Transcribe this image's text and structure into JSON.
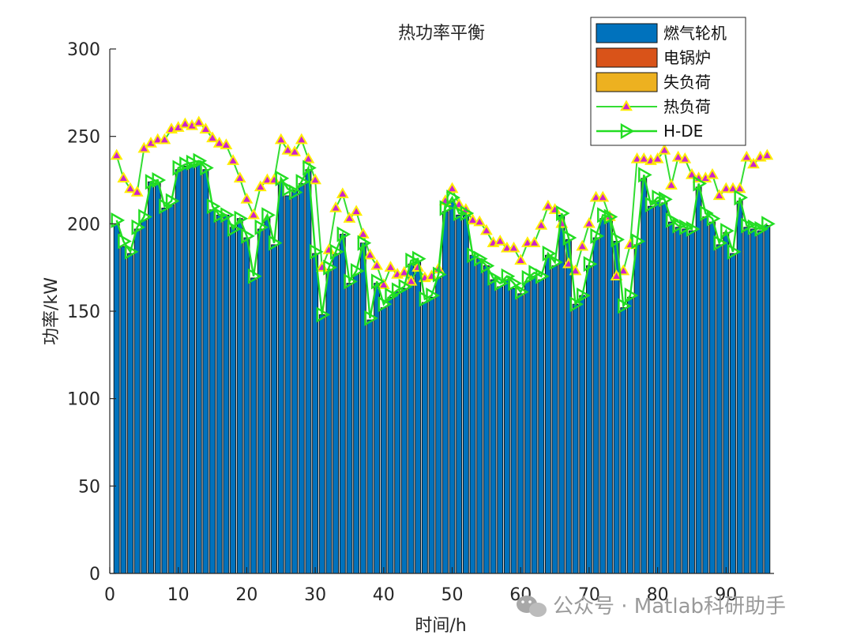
{
  "chart_data": {
    "type": "bar",
    "title": "热功率平衡",
    "xlabel": "时间/h",
    "ylabel": "功率/kW",
    "xlim": [
      0,
      97
    ],
    "ylim": [
      0,
      300
    ],
    "x_ticks": [
      0,
      10,
      20,
      30,
      40,
      50,
      60,
      70,
      80,
      90
    ],
    "y_ticks": [
      0,
      50,
      100,
      150,
      200,
      250,
      300
    ],
    "stacked": true,
    "legend_position": "top-right",
    "grid": false,
    "x": [
      1,
      2,
      3,
      4,
      5,
      6,
      7,
      8,
      9,
      10,
      11,
      12,
      13,
      14,
      15,
      16,
      17,
      18,
      19,
      20,
      21,
      22,
      23,
      24,
      25,
      26,
      27,
      28,
      29,
      30,
      31,
      32,
      33,
      34,
      35,
      36,
      37,
      38,
      39,
      40,
      41,
      42,
      43,
      44,
      45,
      46,
      47,
      48,
      49,
      50,
      51,
      52,
      53,
      54,
      55,
      56,
      57,
      58,
      59,
      60,
      61,
      62,
      63,
      64,
      65,
      66,
      67,
      68,
      69,
      70,
      71,
      72,
      73,
      74,
      75,
      76,
      77,
      78,
      79,
      80,
      81,
      82,
      83,
      84,
      85,
      86,
      87,
      88,
      89,
      90,
      91,
      92,
      93,
      94,
      95,
      96
    ],
    "series": [
      {
        "name": "燃气轮机",
        "kind": "bar",
        "color": "#0072BD",
        "values": [
          200,
          187,
          183,
          197,
          202,
          224,
          223,
          209,
          211,
          231,
          233,
          234,
          234,
          231,
          208,
          205,
          205,
          198,
          203,
          192,
          169,
          197,
          203,
          188,
          224,
          216,
          219,
          223,
          231,
          183,
          148,
          174,
          183,
          194,
          166,
          171,
          189,
          145,
          166,
          152,
          158,
          161,
          163,
          177,
          178,
          155,
          158,
          169,
          207,
          213,
          205,
          205,
          182,
          180,
          176,
          168,
          164,
          168,
          163,
          160,
          167,
          170,
          168,
          182,
          176,
          205,
          191,
          154,
          159,
          176,
          192,
          203,
          202,
          190,
          152,
          158,
          188,
          226,
          210,
          213,
          212,
          201,
          198,
          197,
          196,
          221,
          204,
          201,
          188,
          195,
          183,
          213,
          198,
          197,
          196,
          199
        ]
      },
      {
        "name": "电锅炉",
        "kind": "bar",
        "color": "#D95319",
        "values": [
          0,
          0,
          0,
          0,
          0,
          0,
          0,
          0,
          0,
          0,
          0,
          0,
          0,
          0,
          0,
          0,
          0,
          0,
          0,
          0,
          0,
          0,
          0,
          0,
          0,
          0,
          0,
          0,
          0,
          0,
          0,
          0,
          0,
          0,
          0,
          0,
          0,
          0,
          0,
          0,
          0,
          0,
          0,
          0,
          0,
          0,
          0,
          0,
          0,
          0,
          0,
          0,
          0,
          0,
          0,
          0,
          0,
          0,
          0,
          0,
          0,
          0,
          0,
          0,
          0,
          0,
          0,
          0,
          0,
          0,
          0,
          0,
          0,
          0,
          0,
          0,
          0,
          0,
          0,
          0,
          0,
          0,
          0,
          0,
          0,
          0,
          0,
          0,
          0,
          0,
          0,
          0,
          0,
          0,
          0,
          0
        ]
      },
      {
        "name": "失负荷",
        "kind": "bar",
        "color": "#EDB120",
        "values": [
          0,
          0,
          0,
          0,
          0,
          0,
          0,
          0,
          0,
          0,
          0,
          0,
          0,
          0,
          0,
          0,
          0,
          0,
          0,
          0,
          0,
          0,
          0,
          0,
          0,
          0,
          0,
          0,
          0,
          0,
          0,
          0,
          0,
          0,
          0,
          0,
          0,
          0,
          0,
          0,
          0,
          0,
          0,
          0,
          0,
          0,
          0,
          0,
          0,
          0,
          0,
          0,
          0,
          0,
          0,
          0,
          0,
          0,
          0,
          0,
          0,
          0,
          0,
          0,
          0,
          0,
          0,
          0,
          0,
          0,
          0,
          0,
          0,
          0,
          0,
          0,
          0,
          0,
          0,
          0,
          0,
          0,
          0,
          0,
          0,
          0,
          0,
          0,
          0,
          0,
          0,
          0,
          0,
          0,
          0,
          0
        ]
      },
      {
        "name": "热负荷",
        "kind": "line",
        "color": "#33DD33",
        "marker_face": "#CC22CC",
        "marker_edge": "#FFEE00",
        "values": [
          239,
          226,
          220,
          218,
          243,
          246,
          248,
          248,
          254,
          255,
          257,
          256,
          258,
          254,
          249,
          246,
          245,
          236,
          226,
          214,
          205,
          221,
          225,
          225,
          248,
          242,
          241,
          248,
          237,
          225,
          175,
          185,
          209,
          217,
          203,
          207,
          194,
          182,
          176,
          165,
          175,
          171,
          172,
          167,
          175,
          169,
          170,
          174,
          213,
          220,
          211,
          208,
          202,
          201,
          196,
          189,
          190,
          186,
          186,
          179,
          189,
          189,
          199,
          210,
          208,
          200,
          177,
          173,
          187,
          200,
          215,
          215,
          204,
          170,
          173,
          188,
          237,
          237,
          236,
          237,
          242,
          222,
          238,
          237,
          228,
          226,
          226,
          228,
          216,
          220,
          220,
          220,
          238,
          234,
          238,
          239
        ]
      },
      {
        "name": "H-DE",
        "kind": "line",
        "color": "#22DD22",
        "marker": "triangle-right",
        "values": [
          202,
          190,
          184,
          198,
          204,
          224,
          225,
          210,
          213,
          232,
          234,
          235,
          236,
          232,
          210,
          205,
          205,
          197,
          203,
          193,
          170,
          198,
          205,
          189,
          226,
          220,
          218,
          224,
          232,
          184,
          148,
          175,
          184,
          194,
          167,
          173,
          189,
          146,
          167,
          154,
          159,
          162,
          164,
          179,
          180,
          157,
          159,
          171,
          209,
          215,
          206,
          206,
          182,
          180,
          176,
          169,
          166,
          170,
          166,
          161,
          169,
          172,
          170,
          183,
          178,
          206,
          192,
          154,
          159,
          177,
          193,
          205,
          204,
          191,
          153,
          159,
          190,
          228,
          211,
          215,
          214,
          202,
          199,
          198,
          197,
          223,
          206,
          203,
          189,
          196,
          184,
          215,
          199,
          198,
          197,
          200
        ]
      }
    ]
  },
  "watermark": {
    "text": "公众号 · Matlab科研助手",
    "icon": "wechat-logo-icon"
  }
}
